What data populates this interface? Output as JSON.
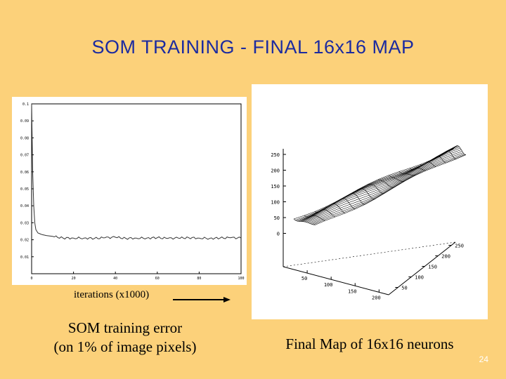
{
  "slide": {
    "title": "SOM TRAINING - FINAL 16x16 MAP",
    "slide_number": "24"
  },
  "left_figure": {
    "x_axis_label": "iterations (x1000)",
    "caption_line1": "SOM training error",
    "caption_line2": "(on 1% of image pixels)"
  },
  "right_figure": {
    "caption": "Final Map of 16x16 neurons",
    "z_ticks": [
      "250",
      "200",
      "150",
      "100",
      "50",
      "0"
    ],
    "x_ticks": [
      "50",
      "100",
      "150",
      "200"
    ],
    "y_ticks": [
      "250",
      "200",
      "150",
      "100",
      "50"
    ]
  },
  "chart_data": {
    "type": "line",
    "title": "",
    "xlabel": "iterations (x1000)",
    "ylabel": "",
    "xlim": [
      0,
      100
    ],
    "ylim": [
      0,
      0.1
    ],
    "x_ticks": [
      "0",
      "20",
      "40",
      "60",
      "80",
      "100"
    ],
    "y_ticks": [
      "0.01",
      "0.02",
      "0.03",
      "0.04",
      "0.05",
      "0.06",
      "0.07",
      "0.08",
      "0.09",
      "0.1"
    ],
    "series": [
      {
        "x": [
          0,
          0.5,
          1,
          1.5,
          2,
          3,
          4,
          5,
          7,
          10,
          15,
          20,
          25,
          30,
          35,
          40,
          45,
          50,
          55,
          60,
          65,
          70,
          75,
          80,
          85,
          90,
          95,
          100
        ],
        "values": [
          0.1,
          0.06,
          0.04,
          0.03,
          0.026,
          0.024,
          0.0235,
          0.023,
          0.0225,
          0.022,
          0.021,
          0.021,
          0.021,
          0.0208,
          0.0212,
          0.0215,
          0.0208,
          0.021,
          0.021,
          0.0212,
          0.0208,
          0.021,
          0.0212,
          0.021,
          0.0208,
          0.021,
          0.0212,
          0.021
        ]
      }
    ]
  },
  "colors": {
    "background": "#fcd17a",
    "title": "#1c2ba0",
    "panel": "#ffffff"
  }
}
